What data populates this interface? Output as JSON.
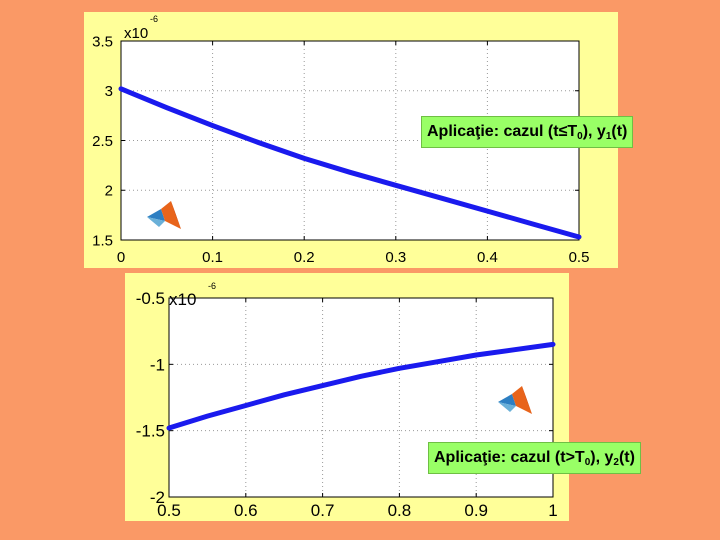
{
  "colors": {
    "background": "#FA9966",
    "panel": "#FFFF99",
    "line": "#1a1aee",
    "caption_bg": "#99FF66"
  },
  "chart_data": [
    {
      "type": "line",
      "scale_label": "x10",
      "scale_exponent": "-6",
      "xlim": [
        0,
        0.5
      ],
      "ylim": [
        1.5,
        3.5
      ],
      "x_ticks": [
        "0",
        "0.1",
        "0.2",
        "0.3",
        "0.4",
        "0.5"
      ],
      "y_ticks": [
        "1.5",
        "2",
        "2.5",
        "3",
        "3.5"
      ],
      "grid": true,
      "series": [
        {
          "x": [
            0,
            0.05,
            0.1,
            0.15,
            0.2,
            0.25,
            0.3,
            0.35,
            0.4,
            0.45,
            0.5
          ],
          "y": [
            3.02,
            2.83,
            2.65,
            2.48,
            2.32,
            2.18,
            2.05,
            1.92,
            1.79,
            1.66,
            1.53
          ]
        }
      ],
      "caption": {
        "text": "Aplicaţie: cazul (t≤T",
        "sub1": "0",
        "mid": "), y",
        "sub2": "1",
        "end": "(t)"
      },
      "icon": "matlab-logo-icon"
    },
    {
      "type": "line",
      "scale_label": "x10",
      "scale_exponent": "-6",
      "xlim": [
        0.5,
        1
      ],
      "ylim": [
        -2,
        -0.5
      ],
      "x_ticks": [
        "0.5",
        "0.6",
        "0.7",
        "0.8",
        "0.9",
        "1"
      ],
      "y_ticks": [
        "-2",
        "-1.5",
        "-1",
        "-0.5"
      ],
      "grid": true,
      "series": [
        {
          "x": [
            0.5,
            0.55,
            0.6,
            0.65,
            0.7,
            0.75,
            0.8,
            0.85,
            0.9,
            0.95,
            1.0
          ],
          "y": [
            -1.48,
            -1.39,
            -1.31,
            -1.23,
            -1.16,
            -1.09,
            -1.03,
            -0.98,
            -0.93,
            -0.89,
            -0.85
          ]
        }
      ],
      "caption": {
        "text": "Aplicaţie: cazul (t>T",
        "sub1": "0",
        "mid": "), y",
        "sub2": "2",
        "end": "(t)"
      },
      "icon": "matlab-logo-icon"
    }
  ]
}
